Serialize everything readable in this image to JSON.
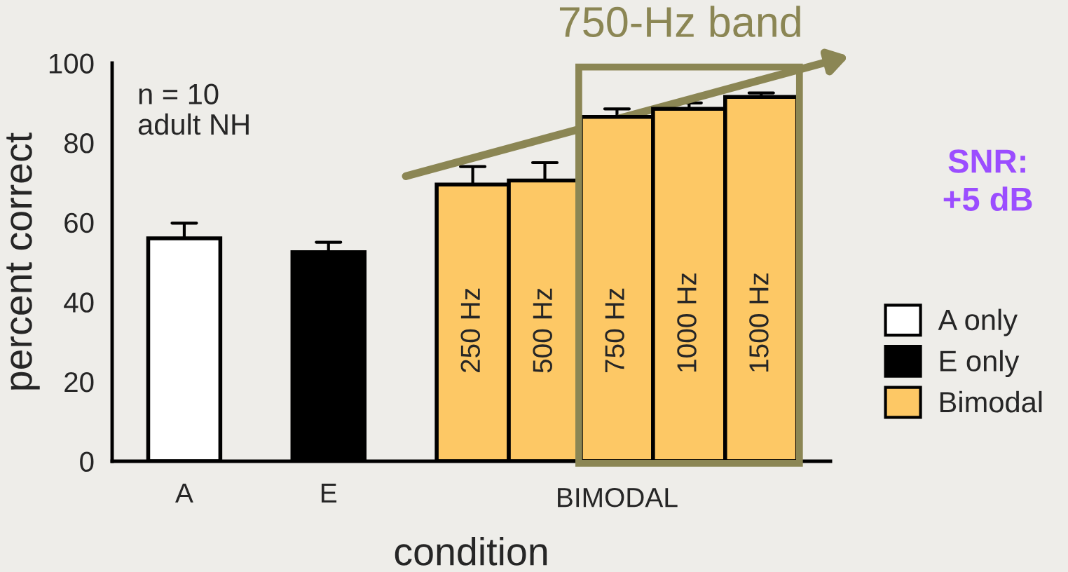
{
  "chart_data": {
    "type": "bar",
    "title": "750-Hz band",
    "ylabel": "percent correct",
    "xlabel": "condition",
    "categories": [
      "A",
      null,
      "E",
      null,
      "250 Hz",
      "500 Hz",
      "750 Hz",
      "1000 Hz",
      "1500 Hz"
    ],
    "series": [
      {
        "name": "A only",
        "color": "#ffffff",
        "values": [
          56,
          null,
          null,
          null,
          null,
          null,
          null,
          null,
          null
        ],
        "errors": [
          3.8,
          null,
          null,
          null,
          null,
          null,
          null,
          null,
          null
        ]
      },
      {
        "name": "E only",
        "color": "#000000",
        "values": [
          null,
          null,
          52.5,
          null,
          null,
          null,
          null,
          null,
          null
        ],
        "errors": [
          null,
          null,
          2.5,
          null,
          null,
          null,
          null,
          null,
          null
        ]
      },
      {
        "name": "Bimodal",
        "color": "#fdc865",
        "values": [
          null,
          null,
          null,
          null,
          69.5,
          70.5,
          86.5,
          88.5,
          91.5
        ],
        "errors": [
          null,
          null,
          null,
          null,
          4.5,
          4.5,
          2,
          1.5,
          1
        ]
      }
    ],
    "ylim": [
      0,
      100
    ],
    "yticks": [
      0,
      20,
      40,
      60,
      80,
      100
    ],
    "grid": false,
    "legend": "right",
    "annotations": [
      "BIMODAL",
      "n = 10\nadult NH",
      "SNR:\n+5 dB"
    ]
  }
}
